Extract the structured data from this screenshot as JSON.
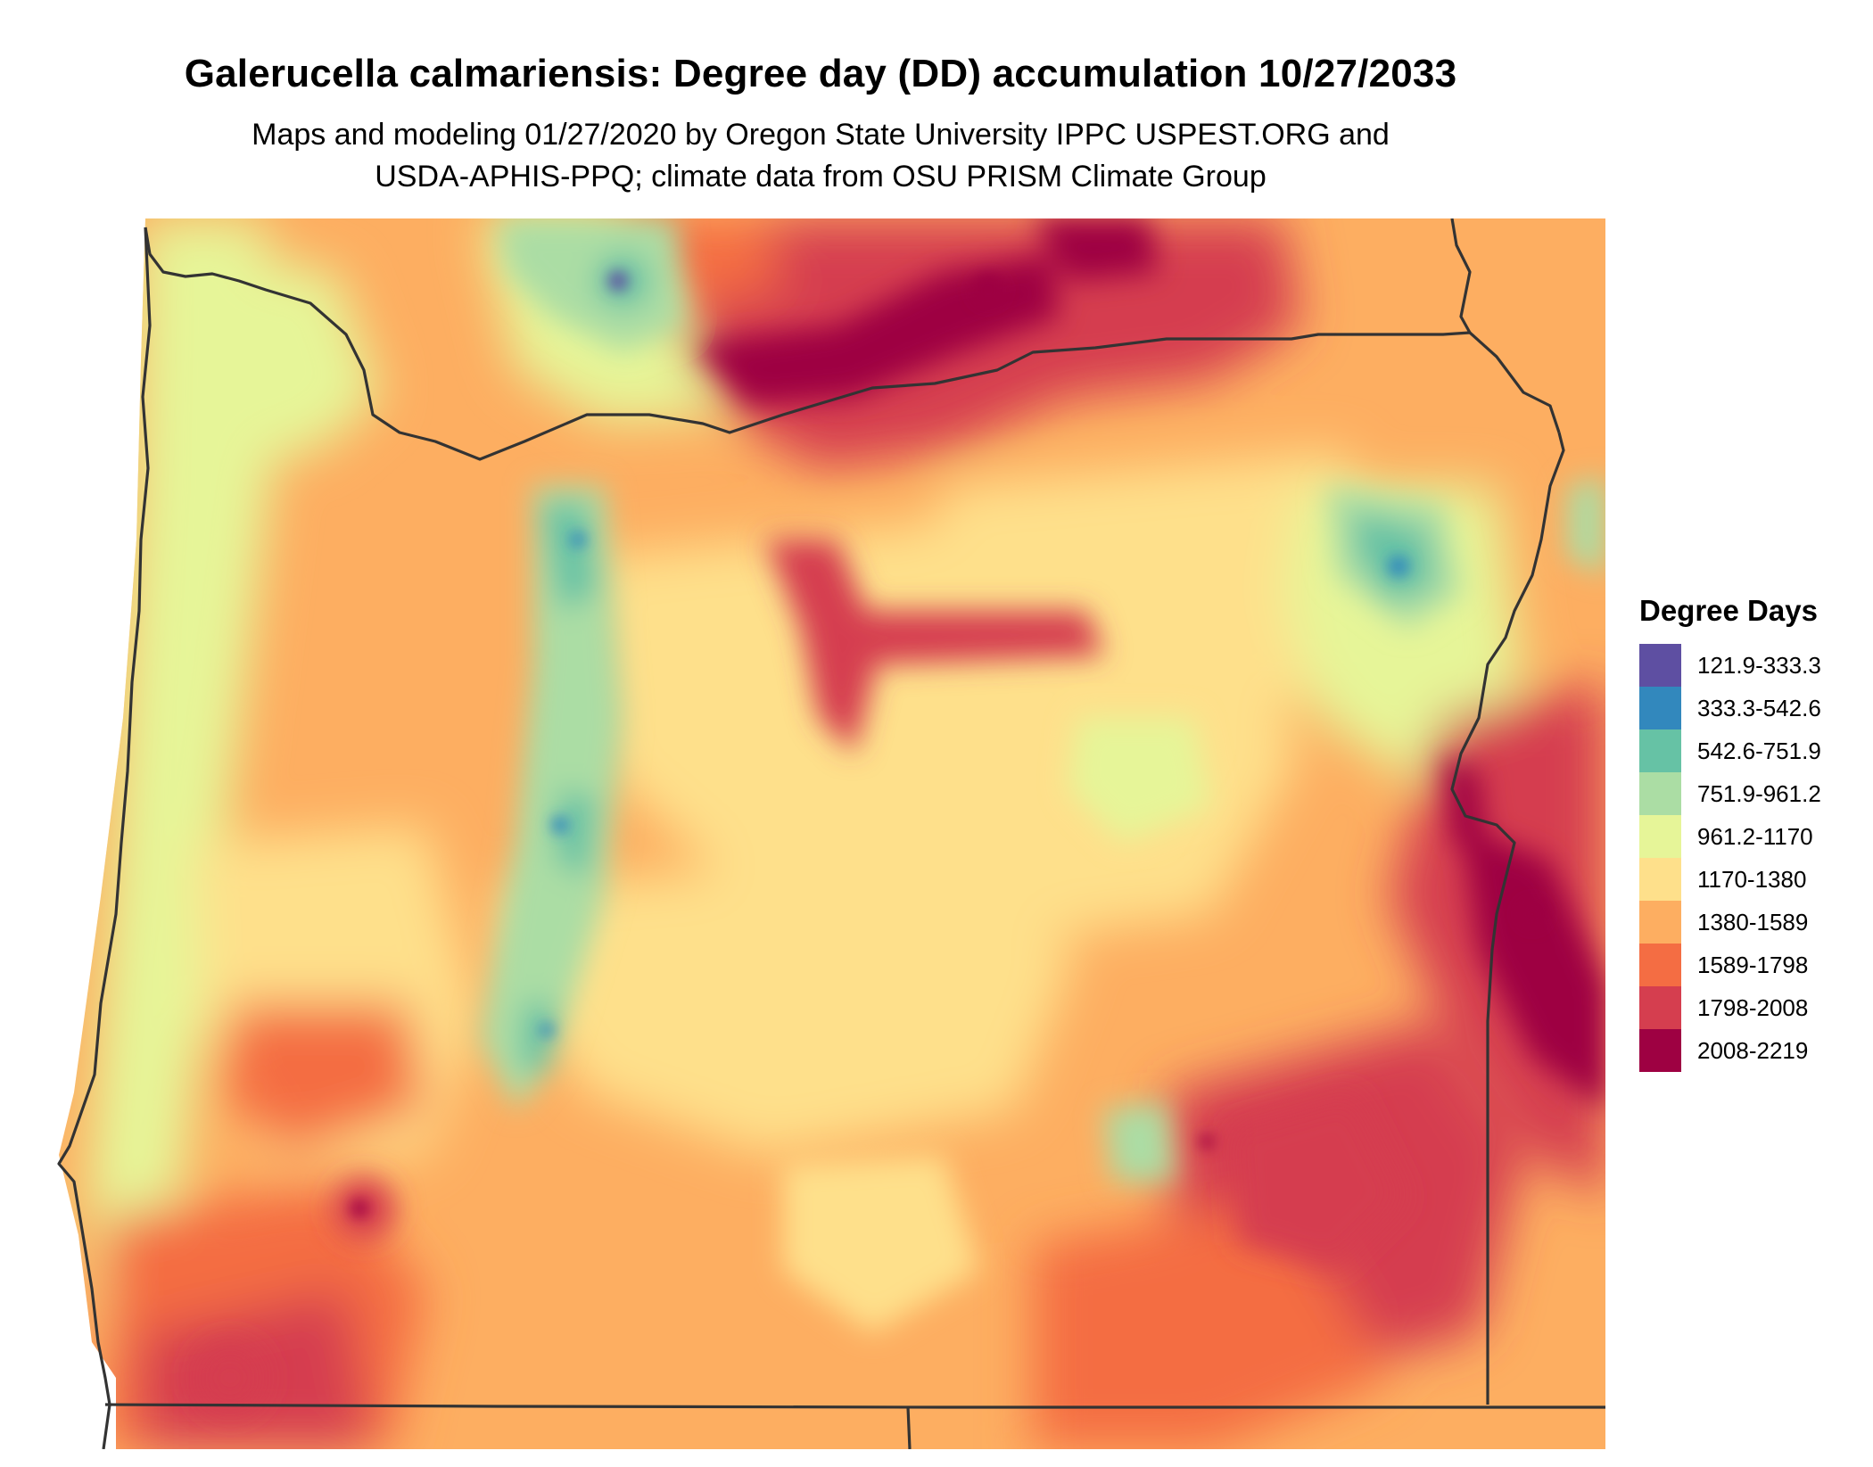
{
  "title": "Galerucella calmariensis: Degree day (DD) accumulation 10/27/2033",
  "subtitle_line1": "Maps and modeling 01/27/2020 by Oregon State University IPPC USPEST.ORG and",
  "subtitle_line2": "USDA-APHIS-PPQ; climate data from OSU PRISM Climate Group",
  "legend": {
    "title": "Degree Days",
    "items": [
      {
        "label": "121.9-333.3",
        "color": "#5e4fa2"
      },
      {
        "label": "333.3-542.6",
        "color": "#3288bd"
      },
      {
        "label": "542.6-751.9",
        "color": "#66c2a5"
      },
      {
        "label": "751.9-961.2",
        "color": "#abdda4"
      },
      {
        "label": "961.2-1170",
        "color": "#e6f598"
      },
      {
        "label": "1170-1380",
        "color": "#fee08b"
      },
      {
        "label": "1380-1589",
        "color": "#fdae61"
      },
      {
        "label": "1589-1798",
        "color": "#f46d43"
      },
      {
        "label": "1798-2008",
        "color": "#d53e4f"
      },
      {
        "label": "2008-2219",
        "color": "#9e0142"
      }
    ]
  },
  "map": {
    "region": "Oregon",
    "boundary_color": "#333333"
  }
}
